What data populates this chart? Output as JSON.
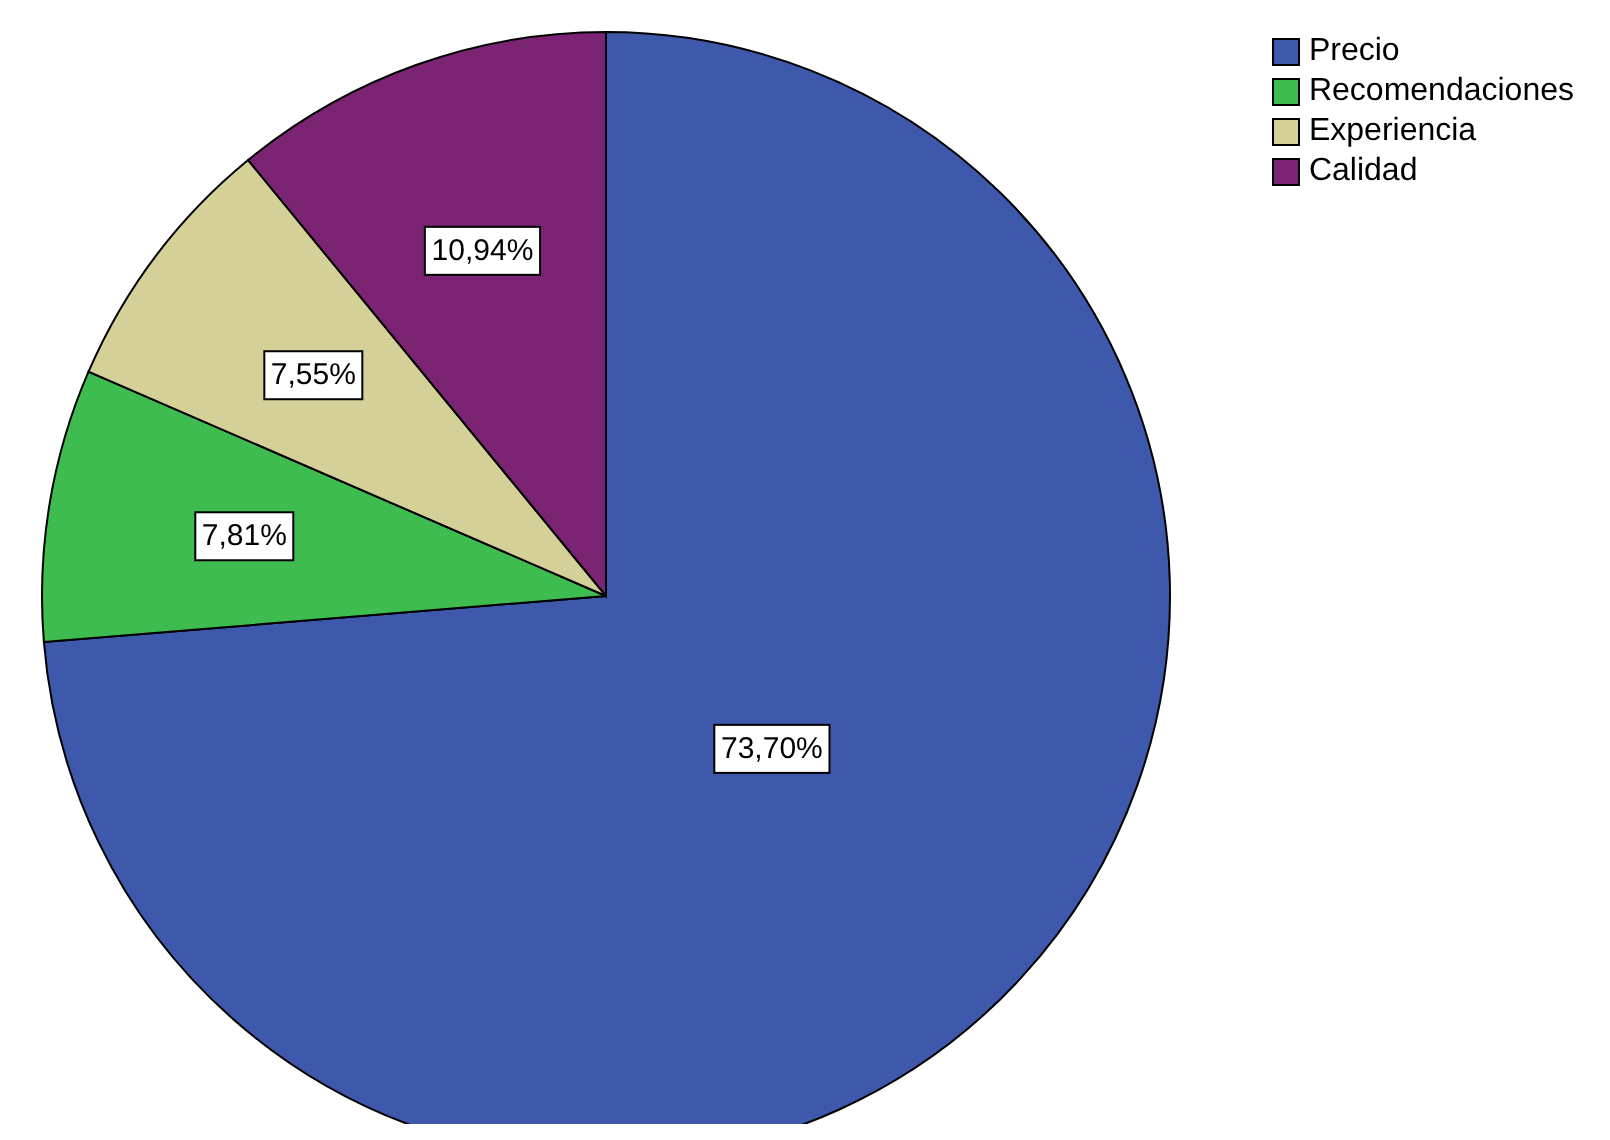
{
  "chart_data": {
    "type": "pie",
    "categories": [
      "Precio",
      "Recomendaciones",
      "Experiencia",
      "Calidad"
    ],
    "values": [
      73.7,
      7.81,
      7.55,
      10.94
    ],
    "value_labels": [
      "73,70%",
      "7,81%",
      "7,55%",
      "10,94%"
    ],
    "colors": [
      "#3e58ac",
      "#3ebc50",
      "#d5cf98",
      "#7b2474"
    ],
    "legend": "top right"
  }
}
